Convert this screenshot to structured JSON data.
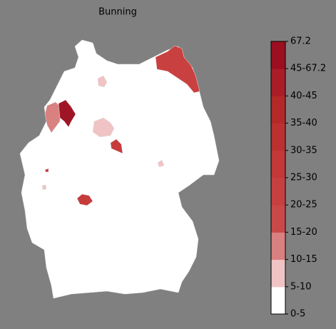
{
  "title": "Bunning",
  "colorbar": {
    "labels": [
      "0-5",
      "5-10",
      "10-15",
      "15-20",
      "20-25",
      "25-30",
      "30-35",
      "35-40",
      "40-45",
      "45-67.2",
      "67.2"
    ],
    "colors": [
      "#ffffff",
      "#f0c4c4",
      "#d98080",
      "#ca4848",
      "#c74040",
      "#c33838",
      "#bd3030",
      "#b52828",
      "#aa1d27",
      "#9b0f20"
    ]
  }
}
